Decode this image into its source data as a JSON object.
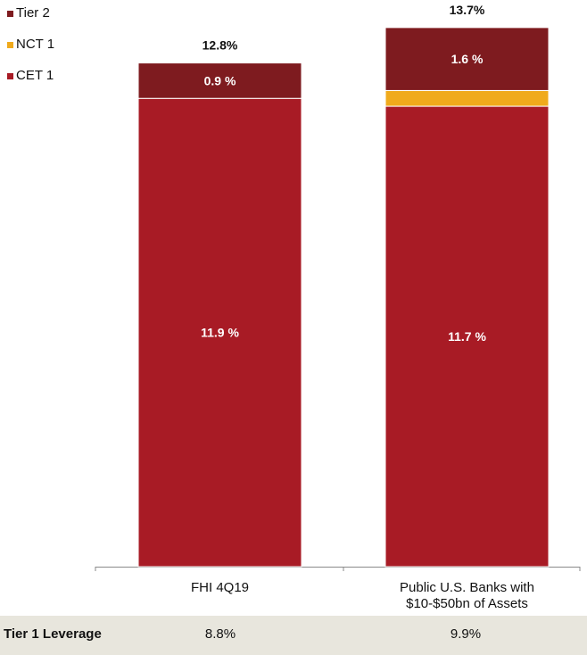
{
  "chart_data": {
    "type": "bar",
    "stacked": true,
    "categories": [
      "FHI 4Q19",
      "Public U.S. Banks with $10-$50bn of Assets"
    ],
    "series": [
      {
        "name": "CET 1",
        "values": [
          11.9,
          11.7
        ],
        "labels": [
          "11.9 %",
          "11.7 %"
        ]
      },
      {
        "name": "NCT 1",
        "values": [
          0.0,
          0.4
        ],
        "labels": [
          "",
          ""
        ]
      },
      {
        "name": "Tier 2",
        "values": [
          0.9,
          1.6
        ],
        "labels": [
          "0.9 %",
          "1.6 %"
        ]
      }
    ],
    "totals": [
      "12.8%",
      "13.7%"
    ],
    "category_labels": [
      [
        "FHI 4Q19"
      ],
      [
        "Public U.S. Banks with",
        "$10-$50bn of Assets"
      ]
    ],
    "legend": [
      "Tier 2",
      "NCT 1",
      "CET 1"
    ],
    "legend_position": "top-left",
    "ylim": [
      0,
      14.4
    ],
    "grid": false,
    "colors": {
      "CET 1": "#a81b25",
      "NCT 1": "#f0aa1c",
      "Tier 2": "#7e1b1f"
    }
  },
  "leverage_row": {
    "label": "Tier 1 Leverage",
    "values": [
      "8.8%",
      "9.9%"
    ]
  }
}
